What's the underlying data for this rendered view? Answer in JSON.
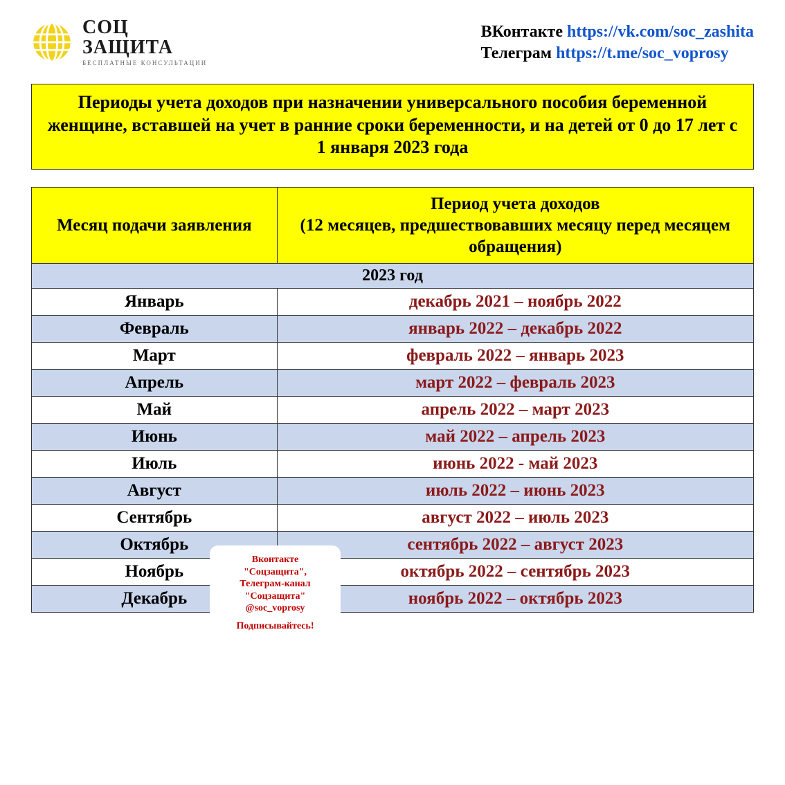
{
  "logo": {
    "line1": "СОЦ",
    "line2": "ЗАЩИТА",
    "sub": "БЕСПЛАТНЫЕ КОНСУЛЬТАЦИИ",
    "globe_color": "#f2d31b"
  },
  "contacts": {
    "vk_label": "ВКонтакте ",
    "vk_link": "https://vk.com/soc_zashita",
    "tg_label": "Телеграм ",
    "tg_link": "https://t.me/soc_voprosy"
  },
  "banner": "Периоды учета доходов при назначении универсального пособия беременной женщине, вставшей на учет в ранние сроки беременности, и на детей от 0 до 17 лет  с 1 января 2023 года",
  "table": {
    "header_col1": "Месяц подачи заявления",
    "header_col2": "Период учета доходов\n(12 месяцев, предшествовавших месяцу перед месяцем  обращения)",
    "year_label": "2023 год",
    "period_color": "#8b1a1a",
    "header_bg": "#ffff00",
    "row_alt_bg": "#c9d6ec",
    "rows": [
      {
        "month": "Январь",
        "period": "декабрь 2021 – ноябрь 2022"
      },
      {
        "month": "Февраль",
        "period": "январь 2022 – декабрь 2022"
      },
      {
        "month": "Март",
        "period": "февраль 2022 – январь 2023"
      },
      {
        "month": "Апрель",
        "period": "март 2022 – февраль 2023"
      },
      {
        "month": "Май",
        "period": "апрель 2022 – март 2023"
      },
      {
        "month": "Июнь",
        "period": "май 2022 – апрель 2023"
      },
      {
        "month": "Июль",
        "period": "июнь 2022  - май 2023"
      },
      {
        "month": "Август",
        "period": "июль 2022 – июнь 2023"
      },
      {
        "month": "Сентябрь",
        "period": "август 2022 – июль 2023"
      },
      {
        "month": "Октябрь",
        "period": "сентябрь 2022 – август 2023"
      },
      {
        "month": "Ноябрь",
        "period": "октябрь 2022 – сентябрь 2023"
      },
      {
        "month": "Декабрь",
        "period": "ноябрь 2022 – октябрь 2023"
      }
    ]
  },
  "overlay": {
    "line1": "Вконтакте",
    "line2": "\"Соцзащита\",",
    "line3": "Телеграм-канал",
    "line4": "\"Соцзащита\"",
    "line5": "@soc_voprosy",
    "cta": "Подписывайтесь!"
  },
  "watermark": {
    "line1": "СОЦ",
    "line2": "ЗАЩИТА"
  }
}
